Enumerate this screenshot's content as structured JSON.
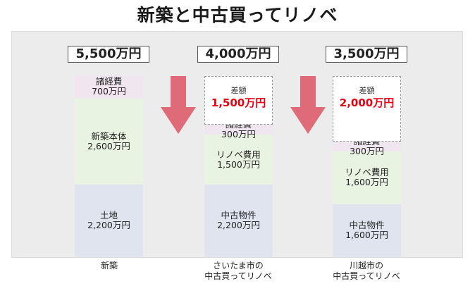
{
  "title": "新築と中古買ってリノベ",
  "colors": {
    "misc": "#f0e6f0",
    "building": "#e9f3e1",
    "land": "#dfe4ee",
    "arrow": "#df6a78",
    "diff_text": "#e60012",
    "panel": "#ececec"
  },
  "icons": [
    "down-arrow-icon",
    "down-arrow-icon"
  ],
  "chart_data": {
    "type": "bar",
    "stacked": true,
    "unit": "万円",
    "categories": [
      {
        "line1": "新築",
        "line2": ""
      },
      {
        "line1": "さいたま市の",
        "line2": "中古買ってリノベ"
      },
      {
        "line1": "川越市の",
        "line2": "中古買ってリノベ"
      }
    ],
    "totals": [
      "5,500万円",
      "4,000万円",
      "3,500万円"
    ],
    "bars": [
      {
        "segments": [
          {
            "name": "土地",
            "label": "土地",
            "value": 2200,
            "value_label": "2,200万円"
          },
          {
            "name": "新築本体",
            "label": "新築本体",
            "value": 2600,
            "value_label": "2,600万円"
          },
          {
            "name": "諸経費",
            "label": "諸経費",
            "value": 700,
            "value_label": "700万円"
          }
        ]
      },
      {
        "segments": [
          {
            "name": "中古物件",
            "label": "中古物件",
            "value": 2200,
            "value_label": "2,200万円"
          },
          {
            "name": "リノベ費用",
            "label": "リノベ費用",
            "value": 1500,
            "value_label": "1,500万円"
          },
          {
            "name": "諸経費",
            "label": "諸経費",
            "value": 300,
            "value_label": "300万円"
          }
        ],
        "difference": {
          "label": "差額",
          "value": 1500,
          "value_label": "1,500万円"
        }
      },
      {
        "segments": [
          {
            "name": "中古物件",
            "label": "中古物件",
            "value": 1600,
            "value_label": "1,600万円"
          },
          {
            "name": "リノベ費用",
            "label": "リノベ費用",
            "value": 1600,
            "value_label": "1,600万円"
          },
          {
            "name": "諸経費",
            "label": "諸経費",
            "value": 300,
            "value_label": "300万円"
          }
        ],
        "difference": {
          "label": "差額",
          "value": 2000,
          "value_label": "2,000万円"
        }
      }
    ]
  }
}
